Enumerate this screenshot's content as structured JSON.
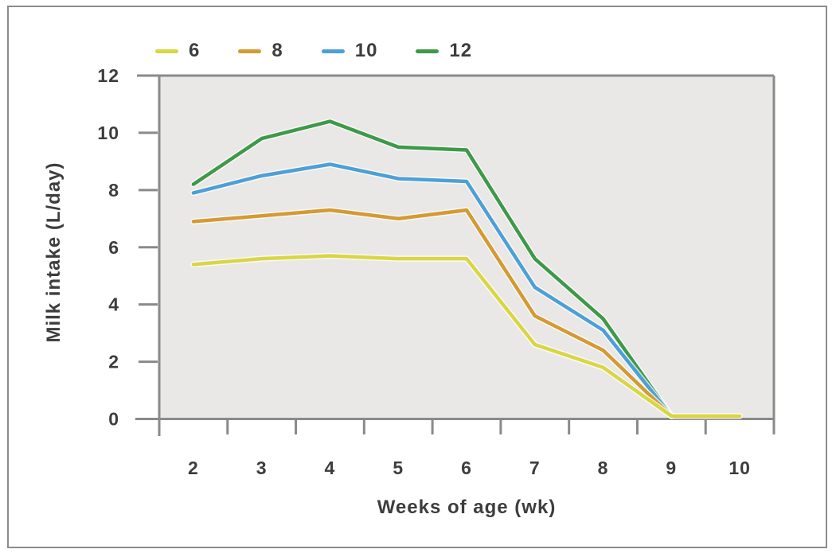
{
  "chart_data": {
    "type": "line",
    "title": "",
    "xlabel": "Weeks of age (wk)",
    "ylabel": "Milk intake (L/day)",
    "categories": [
      "2",
      "3",
      "4",
      "5",
      "6",
      "7",
      "8",
      "9",
      "10"
    ],
    "y_ticks": [
      "0",
      "2",
      "4",
      "6",
      "8",
      "10",
      "12"
    ],
    "ylim": [
      0,
      12
    ],
    "grid": false,
    "legend_position": "top-left",
    "colors": {
      "plot_bg": "#e9e8e6",
      "axis": "#8a8a8a",
      "text": "#3d3d3d",
      "outer_border": "#8c8c8c"
    },
    "series": [
      {
        "name": "6",
        "color": "#d9d645",
        "values": [
          5.4,
          5.6,
          5.7,
          5.6,
          5.6,
          2.6,
          1.8,
          0.1,
          0.1
        ]
      },
      {
        "name": "8",
        "color": "#d49a33",
        "values": [
          6.9,
          7.1,
          7.3,
          7.0,
          7.3,
          3.6,
          2.4,
          0.1,
          null
        ]
      },
      {
        "name": "10",
        "color": "#4da0d5",
        "values": [
          7.9,
          8.5,
          8.9,
          8.4,
          8.3,
          4.6,
          3.1,
          0.1,
          null
        ]
      },
      {
        "name": "12",
        "color": "#3e9949",
        "values": [
          8.2,
          9.8,
          10.4,
          9.5,
          9.4,
          5.6,
          3.5,
          0.1,
          null
        ]
      }
    ]
  }
}
